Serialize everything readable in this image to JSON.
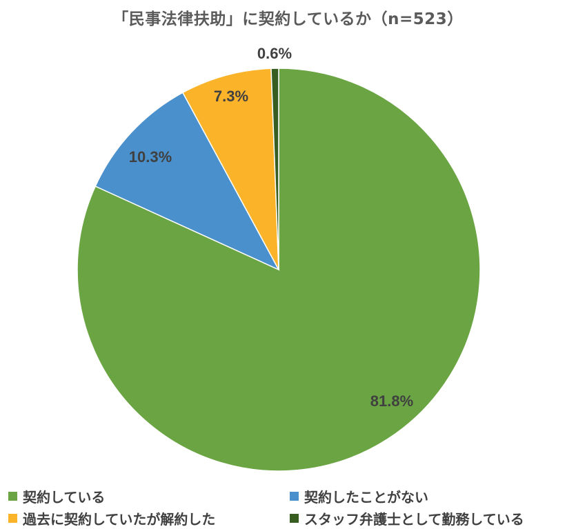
{
  "chart_data": {
    "type": "pie",
    "title": "「民事法律扶助」に契約しているか（n=523）",
    "slices": [
      {
        "label": "契約している",
        "value": 81.8,
        "value_label": "81.8%",
        "color": "#6aa443"
      },
      {
        "label": "契約したことがない",
        "value": 10.3,
        "value_label": "10.3%",
        "color": "#4a90cc"
      },
      {
        "label": "過去に契約していたが解約した",
        "value": 7.3,
        "value_label": "7.3%",
        "color": "#fbb42a"
      },
      {
        "label": "スタッフ弁護士として勤務している",
        "value": 0.6,
        "value_label": "0.6%",
        "color": "#375d21"
      }
    ],
    "start_angle_deg": 0,
    "direction": "clockwise",
    "legend_position": "bottom"
  }
}
